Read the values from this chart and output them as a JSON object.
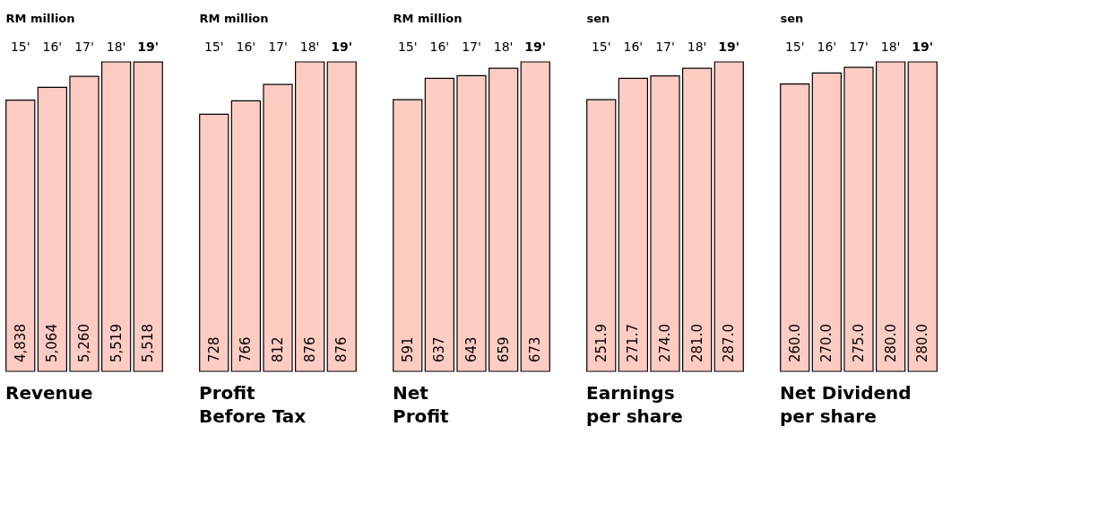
{
  "chart_data": [
    {
      "type": "bar",
      "title": "Revenue",
      "ylabel": "RM million",
      "categories": [
        "15'",
        "16'",
        "17'",
        "18'",
        "19'"
      ],
      "values": [
        4838,
        5064,
        5260,
        5519,
        5518
      ],
      "value_labels": [
        "4,838",
        "5,064",
        "5,260",
        "5,519",
        "5,518"
      ],
      "color": "#ffccc4"
    },
    {
      "type": "bar",
      "title": "Profit\nBefore Tax",
      "ylabel": "RM million",
      "categories": [
        "15'",
        "16'",
        "17'",
        "18'",
        "19'"
      ],
      "values": [
        728,
        766,
        812,
        876,
        876
      ],
      "value_labels": [
        "728",
        "766",
        "812",
        "876",
        "876"
      ],
      "color": "#ffccc4"
    },
    {
      "type": "bar",
      "title": "Net\nProfit",
      "ylabel": "RM million",
      "categories": [
        "15'",
        "16'",
        "17'",
        "18'",
        "19'"
      ],
      "values": [
        591,
        637,
        643,
        659,
        673
      ],
      "value_labels": [
        "591",
        "637",
        "643",
        "659",
        "673"
      ],
      "color": "#ffccc4"
    },
    {
      "type": "bar",
      "title": "Earnings\nper share",
      "ylabel": "sen",
      "categories": [
        "15'",
        "16'",
        "17'",
        "18'",
        "19'"
      ],
      "values": [
        251.9,
        271.7,
        274.0,
        281.0,
        287.0
      ],
      "value_labels": [
        "251.9",
        "271.7",
        "274.0",
        "281.0",
        "287.0"
      ],
      "color": "#ffccc4"
    },
    {
      "type": "bar",
      "title": "Net Dividend\nper share",
      "ylabel": "sen",
      "categories": [
        "15'",
        "16'",
        "17'",
        "18'",
        "19'"
      ],
      "values": [
        260.0,
        270.0,
        275.0,
        280.0,
        280.0
      ],
      "value_labels": [
        "260.0",
        "270.0",
        "275.0",
        "280.0",
        "280.0"
      ],
      "color": "#ffccc4"
    }
  ]
}
